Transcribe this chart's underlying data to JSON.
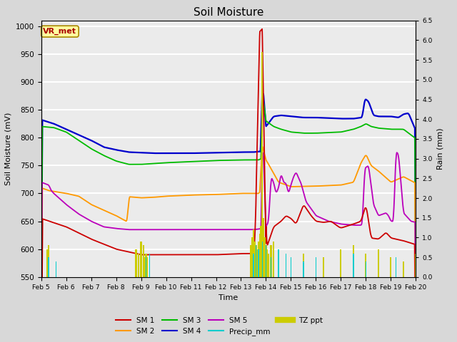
{
  "title": "Soil Moisture",
  "xlabel": "Time",
  "ylabel_left": "Soil Moisture (mV)",
  "ylabel_right": "Rain (mm)",
  "ylim_left": [
    550,
    1010
  ],
  "ylim_right": [
    0.0,
    6.5
  ],
  "bg_color": "#d8d8d8",
  "plot_bg_color": "#ebebeb",
  "colors": {
    "SM1": "#cc0000",
    "SM2": "#ff9900",
    "SM3": "#00bb00",
    "SM4": "#0000cc",
    "SM5": "#bb00bb",
    "Precip_mm": "#00cccc",
    "TZ_ppt": "#cccc00"
  },
  "x_tick_labels": [
    "Feb 5",
    "Feb 6",
    "Feb 7",
    "Feb 8",
    "Feb 9",
    "Feb 10",
    "Feb 11",
    "Feb 12",
    "Feb 13",
    "Feb 14",
    "Feb 15",
    "Feb 16",
    "Feb 17",
    "Feb 18",
    "Feb 19",
    "Feb 20"
  ],
  "yticks_left": [
    550,
    600,
    650,
    700,
    750,
    800,
    850,
    900,
    950,
    1000
  ],
  "yticks_right": [
    0.0,
    0.5,
    1.0,
    1.5,
    2.0,
    2.5,
    3.0,
    3.5,
    4.0,
    4.5,
    5.0,
    5.5,
    6.0,
    6.5
  ]
}
